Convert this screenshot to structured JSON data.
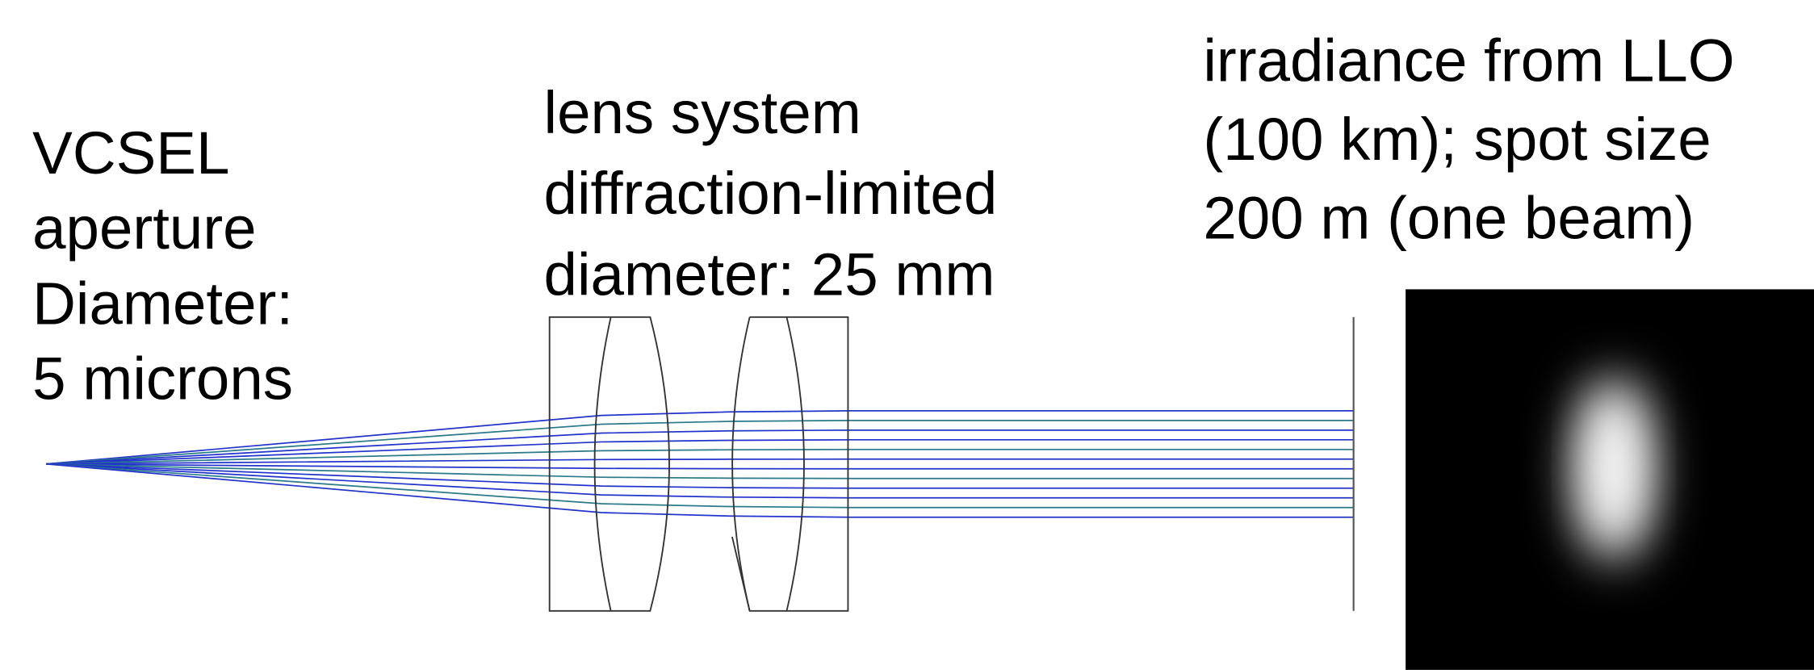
{
  "labels": [
    {
      "lines": [
        "VCSEL",
        "aperture",
        "Diameter:",
        "5 microns"
      ]
    },
    {
      "lines": [
        "lens system",
        "diffraction-limited",
        "diameter: 25 mm"
      ]
    },
    {
      "lines": [
        "irradiance from LLO",
        "(100 km); spot size",
        "200 m (one beam)"
      ]
    }
  ]
}
